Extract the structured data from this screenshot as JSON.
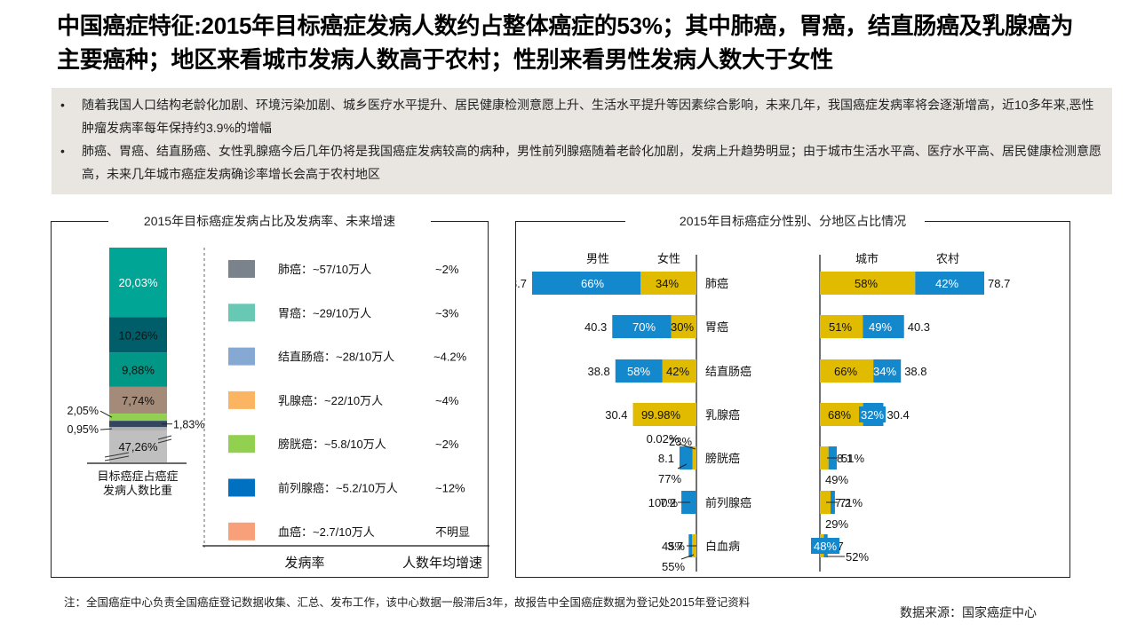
{
  "header": {
    "title": "中国癌症特征:2015年目标癌症发病人数约占整体癌症的53%；其中肺癌，胃癌，结直肠癌及乳腺癌为主要癌种；地区来看城市发病人数高于农村；性别来看男性发病人数大于女性"
  },
  "summary": {
    "bullets": [
      "随着我国人口结构老龄化加剧、环境污染加剧、城乡医疗水平提升、居民健康检测意愿上升、生活水平提升等因素综合影响，未来几年，我国癌症发病率将会逐渐增高，近10多年来,恶性肿瘤发病率每年保持约3.9%的增幅",
      "肺癌、胃癌、结直肠癌、女性乳腺癌今后几年仍将是我国癌症发病较高的病种，男性前列腺癌随着老龄化加剧，发病上升趋势明显；由于城市生活水平高、医疗水平高、居民健康检测意愿高，未来几年城市癌症发病确诊率增长会高于农村地区"
    ]
  },
  "colors": {
    "male": "#1488cc",
    "female": "#e0bb00",
    "rural": "#1488cc",
    "urban": "#e0bb00"
  },
  "chart_data": [
    {
      "type": "bar",
      "subtype": "stacked-100",
      "title": "2015年目标癌症发病占比及发病率、未来增速",
      "xlabel": "目标癌症占癌症发病人数比重",
      "segments": [
        {
          "label": "20,03%",
          "value": 20.03,
          "color": "#00a596",
          "text_color": "#ffffff"
        },
        {
          "label": "10,26%",
          "value": 10.26,
          "color": "#005e6b",
          "text_color": "#111111"
        },
        {
          "label": "9,88%",
          "value": 9.88,
          "color": "#009786",
          "text_color": "#111111"
        },
        {
          "label": "7,74%",
          "value": 7.74,
          "color": "#a48a78",
          "text_color": "#111111"
        },
        {
          "label": "2,05%",
          "value": 2.05,
          "color": "#92d050",
          "text_color": "#111111"
        },
        {
          "label": "1,83%",
          "value": 1.83,
          "color": "#33465e",
          "text_color": "#111111"
        },
        {
          "label": "0,95%",
          "value": 0.95,
          "color": "#b0b0b0",
          "text_color": "#111111"
        },
        {
          "label": "47,26%",
          "value": 47.26,
          "color": "#bfbfbf",
          "text_color": "#111111",
          "broken_axis": true
        }
      ],
      "legend": [
        {
          "name": "肺癌",
          "rate": "肺癌：~57/10万人",
          "growth": "~2%",
          "color": "#7a838c"
        },
        {
          "name": "胃癌",
          "rate": "胃癌：~29/10万人",
          "growth": "~3%",
          "color": "#67c9b4"
        },
        {
          "name": "结直肠癌",
          "rate": "结直肠癌：~28/10万人",
          "growth": "~4.2%",
          "color": "#85a9d3"
        },
        {
          "name": "乳腺癌",
          "rate": "乳腺癌：~22/10万人",
          "growth": "~4%",
          "color": "#fbb462"
        },
        {
          "name": "膀胱癌",
          "rate": "膀胱癌：~5.8/10万人",
          "growth": "~2%",
          "color": "#92d050"
        },
        {
          "name": "前列腺癌",
          "rate": "前列腺癌：~5.2/10万人",
          "growth": "~12%",
          "color": "#0070c0"
        },
        {
          "name": "血癌",
          "rate": "血癌：~2.7/10万人",
          "growth": "不明显",
          "color": "#f8a07a"
        }
      ],
      "col_rate": "发病率",
      "col_growth": "人数年均增速"
    },
    {
      "type": "bar",
      "subtype": "horizontal-stacked-butterfly",
      "title": "2015年目标癌症分性别、分地区占比情况",
      "categories": [
        "肺癌",
        "胃癌",
        "结直肠癌",
        "乳腺癌",
        "膀胱癌",
        "前列腺癌",
        "白血病"
      ],
      "totals": [
        78.7,
        40.3,
        38.8,
        30.4,
        8.1,
        7.2,
        3.7
      ],
      "gender": {
        "headers": [
          "男性",
          "女性"
        ],
        "series": [
          {
            "name": "男性",
            "labels": [
              "66%",
              "70%",
              "58%",
              "0.02%",
              "77%",
              "100%",
              "45%"
            ],
            "values": [
              66,
              70,
              58,
              0.02,
              77,
              100,
              45
            ]
          },
          {
            "name": "女性",
            "labels": [
              "34%",
              "30%",
              "42%",
              "99.98%",
              "23%",
              "0%",
              "55%"
            ],
            "values": [
              34,
              30,
              42,
              99.98,
              23,
              0,
              55
            ]
          }
        ]
      },
      "region": {
        "headers": [
          "城市",
          "农村"
        ],
        "series": [
          {
            "name": "城市",
            "labels": [
              "58%",
              "51%",
              "66%",
              "68%",
              "51%",
              "71%",
              "52%"
            ],
            "values": [
              58,
              51,
              66,
              68,
              51,
              71,
              52
            ]
          },
          {
            "name": "农村",
            "labels": [
              "42%",
              "49%",
              "34%",
              "32%",
              "49%",
              "29%",
              "48%"
            ],
            "values": [
              42,
              49,
              34,
              32,
              49,
              29,
              48
            ]
          }
        ]
      }
    }
  ],
  "footer": {
    "note": "注：全国癌症中心负责全国癌症登记数据收集、汇总、发布工作，该中心数据一般滞后3年，故报告中全国癌症数据为登记处2015年登记资料",
    "source": "数据来源：国家癌症中心"
  }
}
